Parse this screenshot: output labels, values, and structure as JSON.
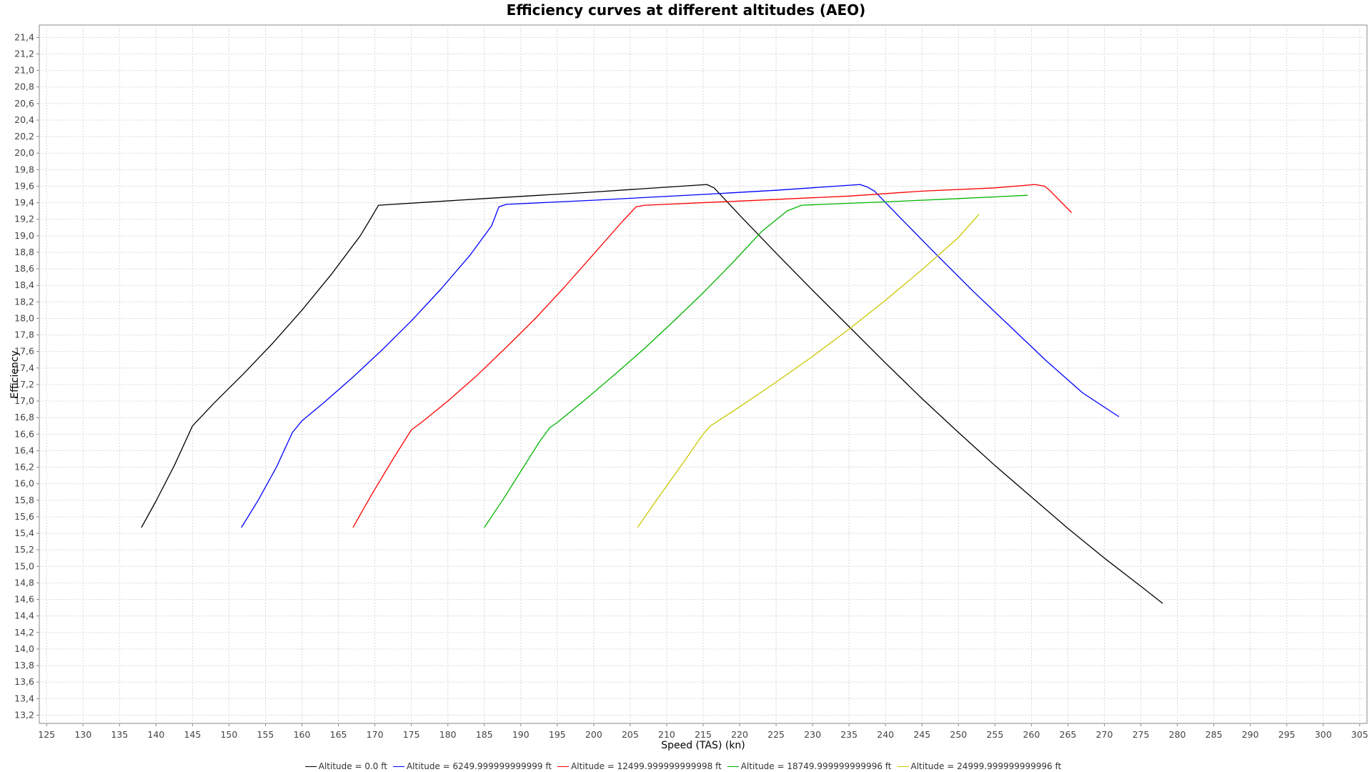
{
  "chart_data": {
    "type": "line",
    "title": "Efficiency curves at different altitudes (AEO)",
    "xlabel": "Speed (TAS) (kn)",
    "ylabel": "Efficiency",
    "xlim": [
      124,
      306
    ],
    "ylim": [
      13.1,
      21.55
    ],
    "xticks": [
      125,
      130,
      135,
      140,
      145,
      150,
      155,
      160,
      165,
      170,
      175,
      180,
      185,
      190,
      195,
      200,
      205,
      210,
      215,
      220,
      225,
      230,
      235,
      240,
      245,
      250,
      255,
      260,
      265,
      270,
      275,
      280,
      285,
      290,
      295,
      300,
      305
    ],
    "yticks": [
      "13,2",
      "13,4",
      "13,6",
      "13,8",
      "14,0",
      "14,2",
      "14,4",
      "14,6",
      "14,8",
      "15,0",
      "15,2",
      "15,4",
      "15,6",
      "15,8",
      "16,0",
      "16,2",
      "16,4",
      "16,6",
      "16,8",
      "17,0",
      "17,2",
      "17,4",
      "17,6",
      "17,8",
      "18,0",
      "18,2",
      "18,4",
      "18,6",
      "18,8",
      "19,0",
      "19,2",
      "19,4",
      "19,6",
      "19,8",
      "20,0",
      "20,2",
      "20,4",
      "20,6",
      "20,8",
      "21,0",
      "21,2",
      "21,4"
    ],
    "grid": true,
    "legend_position": "bottom",
    "series": [
      {
        "name": "Altitude = 0.0 ft",
        "color": "#000000",
        "points": [
          [
            138.0,
            15.47
          ],
          [
            140.0,
            15.79
          ],
          [
            142.5,
            16.22
          ],
          [
            145.0,
            16.7
          ],
          [
            148.0,
            16.98
          ],
          [
            152.0,
            17.33
          ],
          [
            156.0,
            17.7
          ],
          [
            160.0,
            18.1
          ],
          [
            164.0,
            18.53
          ],
          [
            168.0,
            19.0
          ],
          [
            169.5,
            19.22
          ],
          [
            170.5,
            19.37
          ],
          [
            185.0,
            19.45
          ],
          [
            200.0,
            19.53
          ],
          [
            215.5,
            19.62
          ],
          [
            216.5,
            19.58
          ],
          [
            220.0,
            19.25
          ],
          [
            225.0,
            18.79
          ],
          [
            230.0,
            18.34
          ],
          [
            235.0,
            17.9
          ],
          [
            240.0,
            17.46
          ],
          [
            245.0,
            17.03
          ],
          [
            250.0,
            16.62
          ],
          [
            255.0,
            16.22
          ],
          [
            260.0,
            15.84
          ],
          [
            265.0,
            15.46
          ],
          [
            270.0,
            15.1
          ],
          [
            275.0,
            14.76
          ],
          [
            278.0,
            14.55
          ]
        ]
      },
      {
        "name": "Altitude = 6249.999999999999 ft",
        "color": "#0000ff",
        "points": [
          [
            151.7,
            15.47
          ],
          [
            154.0,
            15.8
          ],
          [
            156.5,
            16.2
          ],
          [
            158.7,
            16.62
          ],
          [
            160.0,
            16.76
          ],
          [
            163.0,
            16.98
          ],
          [
            167.0,
            17.29
          ],
          [
            171.0,
            17.62
          ],
          [
            175.0,
            17.97
          ],
          [
            179.0,
            18.35
          ],
          [
            183.0,
            18.76
          ],
          [
            186.0,
            19.12
          ],
          [
            187.0,
            19.35
          ],
          [
            188.0,
            19.38
          ],
          [
            200.0,
            19.43
          ],
          [
            215.0,
            19.5
          ],
          [
            225.0,
            19.55
          ],
          [
            236.5,
            19.62
          ],
          [
            237.5,
            19.59
          ],
          [
            238.5,
            19.54
          ],
          [
            242.0,
            19.22
          ],
          [
            247.0,
            18.77
          ],
          [
            252.0,
            18.33
          ],
          [
            257.0,
            17.91
          ],
          [
            262.0,
            17.49
          ],
          [
            267.0,
            17.1
          ],
          [
            272.0,
            16.81
          ]
        ]
      },
      {
        "name": "Altitude = 12499.999999999998 ft",
        "color": "#ff0000",
        "points": [
          [
            167.0,
            15.47
          ],
          [
            169.5,
            15.86
          ],
          [
            172.5,
            16.3
          ],
          [
            175.0,
            16.65
          ],
          [
            176.5,
            16.75
          ],
          [
            180.0,
            17.0
          ],
          [
            184.0,
            17.31
          ],
          [
            188.0,
            17.65
          ],
          [
            192.0,
            18.0
          ],
          [
            196.0,
            18.38
          ],
          [
            200.0,
            18.78
          ],
          [
            204.0,
            19.18
          ],
          [
            205.8,
            19.35
          ],
          [
            207.0,
            19.37
          ],
          [
            220.0,
            19.42
          ],
          [
            235.0,
            19.48
          ],
          [
            245.0,
            19.54
          ],
          [
            255.0,
            19.58
          ],
          [
            260.5,
            19.62
          ],
          [
            261.8,
            19.6
          ],
          [
            262.5,
            19.55
          ],
          [
            265.5,
            19.28
          ]
        ]
      },
      {
        "name": "Altitude = 18749.999999999996 ft",
        "color": "#00b400",
        "points": [
          [
            185.0,
            15.47
          ],
          [
            187.5,
            15.8
          ],
          [
            190.0,
            16.15
          ],
          [
            192.5,
            16.5
          ],
          [
            194.0,
            16.68
          ],
          [
            195.0,
            16.74
          ],
          [
            199.0,
            17.03
          ],
          [
            203.0,
            17.33
          ],
          [
            207.0,
            17.64
          ],
          [
            211.0,
            17.97
          ],
          [
            215.0,
            18.31
          ],
          [
            219.0,
            18.67
          ],
          [
            223.0,
            19.05
          ],
          [
            226.5,
            19.3
          ],
          [
            228.5,
            19.37
          ],
          [
            240.0,
            19.41
          ],
          [
            250.0,
            19.45
          ],
          [
            259.5,
            19.49
          ]
        ]
      },
      {
        "name": "Altitude = 24999.999999999996 ft",
        "color": "#c8c800",
        "points": [
          [
            206.0,
            15.47
          ],
          [
            209.0,
            15.85
          ],
          [
            212.0,
            16.22
          ],
          [
            215.0,
            16.6
          ],
          [
            216.0,
            16.7
          ],
          [
            220.0,
            16.93
          ],
          [
            225.0,
            17.23
          ],
          [
            230.0,
            17.54
          ],
          [
            235.0,
            17.87
          ],
          [
            240.0,
            18.22
          ],
          [
            245.0,
            18.59
          ],
          [
            250.0,
            18.98
          ],
          [
            252.8,
            19.26
          ]
        ]
      }
    ]
  }
}
